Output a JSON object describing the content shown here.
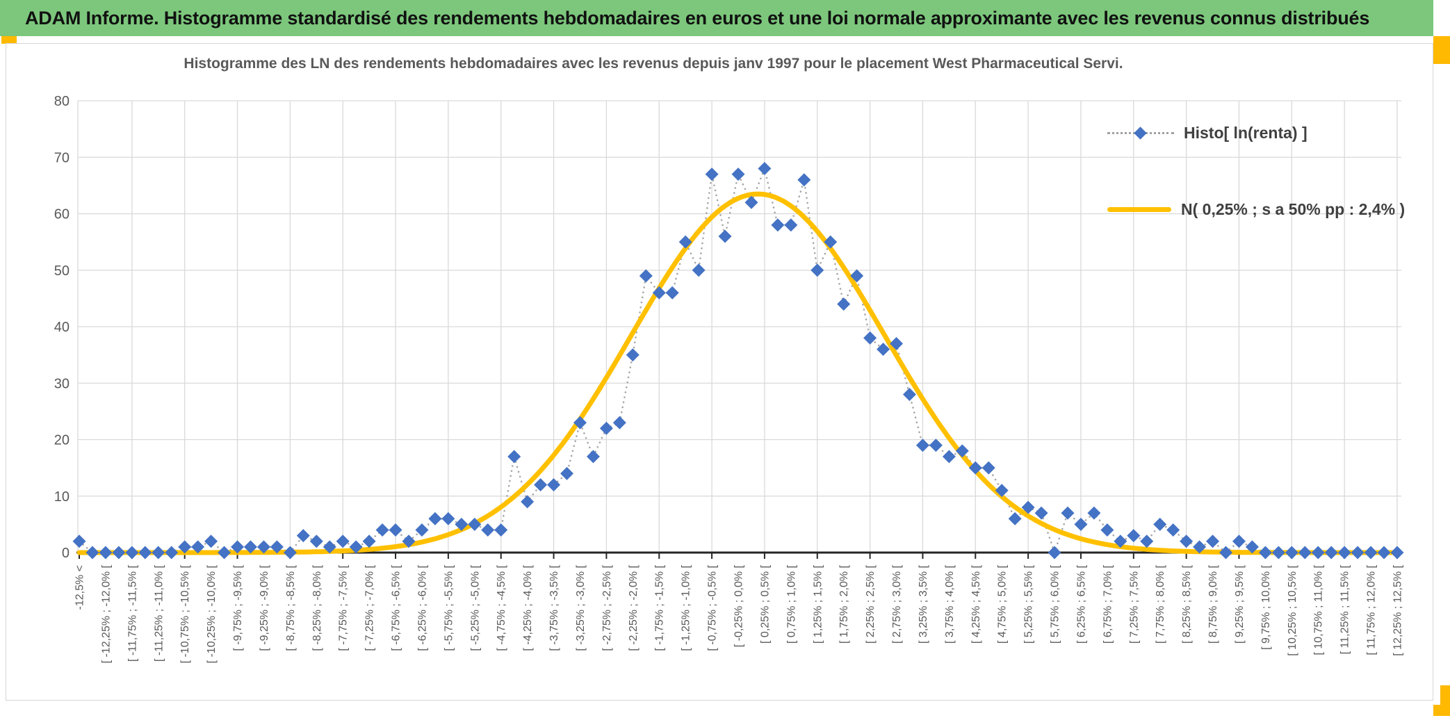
{
  "banner": {
    "title": "ADAM Informe. Histogramme standardisé des rendements hebdomadaires en euros et une loi normale approximante avec les revenus connus distribués",
    "bg_color": "#7CC77C",
    "text_color": "#111111"
  },
  "accents": {
    "color": "#FFB900"
  },
  "chart_data": {
    "type": "scatter",
    "title": "Histogramme des LN des rendements hebdomadaires avec les revenus depuis janv 1997 pour le placement West Pharmaceutical Servi.",
    "xlabel": "",
    "ylabel": "",
    "ylim": [
      0,
      80
    ],
    "yticks": [
      0,
      10,
      20,
      30,
      40,
      50,
      60,
      70,
      80
    ],
    "grid": true,
    "legend_position": "top-right",
    "label_step": 2,
    "x_bin_width_pct": 0.25,
    "x_first_bin_midpoint_pct": -12.625,
    "categories": [
      "-12,5% <",
      "[ -12,25% ; -12,0% [",
      "[ -11,75% ; -11,5% [",
      "[ -11,25% ; -11,0% [",
      "[ -10,75% ; -10,5% [",
      "[ -10,25% ; -10,0% [",
      "[ -9,75% ; -9,5% [",
      "[ -9,25% ; -9,0% [",
      "[ -8,75% ; -8,5% [",
      "[ -8,25% ; -8,0% [",
      "[ -7,75% ; -7,5% [",
      "[ -7,25% ; -7,0% [",
      "[ -6,75% ; -6,5% [",
      "[ -6,25% ; -6,0% [",
      "[ -5,75% ; -5,5% [",
      "[ -5,25% ; -5,0% [",
      "[ -4,75% ; -4,5% [",
      "[ -4,25% ; -4,0% [",
      "[ -3,75% ; -3,5% [",
      "[ -3,25% ; -3,0% [",
      "[ -2,75% ; -2,5% [",
      "[ -2,25% ; -2,0% [",
      "[ -1,75% ; -1,5% [",
      "[ -1,25% ; -1,0% [",
      "[ -0,75% ; -0,5% [",
      "[ -0,25% ; 0,0% [",
      "[ 0,25% ; 0,5% [",
      "[ 0,75% ; 1,0% [",
      "[ 1,25% ; 1,5% [",
      "[ 1,75% ; 2,0% [",
      "[ 2,25% ; 2,5% [",
      "[ 2,75% ; 3,0% [",
      "[ 3,25% ; 3,5% [",
      "[ 3,75% ; 4,0% [",
      "[ 4,25% ; 4,5% [",
      "[ 4,75% ; 5,0% [",
      "[ 5,25% ; 5,5% [",
      "[ 5,75% ; 6,0% [",
      "[ 6,25% ; 6,5% [",
      "[ 6,75% ; 7,0% [",
      "[ 7,25% ; 7,5% [",
      "[ 7,75% ; 8,0% [",
      "[ 8,25% ; 8,5% [",
      "[ 8,75% ; 9,0% [",
      "[ 9,25% ; 9,5% [",
      "[ 9,75% ; 10,0% [",
      "[ 10,25% ; 10,5% [",
      "[ 10,75% ; 11,0% [",
      "[ 11,25% ; 11,5% [",
      "[ 11,75% ; 12,0% [",
      "[ 12,25% ; 12,5% ["
    ],
    "series": [
      {
        "name": "Histo[ ln(renta) ]",
        "style": "scatter-dotted",
        "color": "#4472C4",
        "line_color": "#A6A6A6",
        "values": [
          2,
          0,
          0,
          0,
          0,
          0,
          0,
          0,
          1,
          1,
          2,
          0,
          1,
          1,
          1,
          1,
          0,
          3,
          2,
          1,
          2,
          1,
          2,
          4,
          4,
          2,
          4,
          6,
          6,
          5,
          5,
          4,
          4,
          17,
          9,
          12,
          12,
          14,
          23,
          17,
          22,
          23,
          35,
          49,
          46,
          46,
          55,
          50,
          67,
          56,
          67,
          62,
          68,
          58,
          58,
          66,
          50,
          55,
          44,
          49,
          38,
          36,
          37,
          28,
          19,
          19,
          17,
          18,
          15,
          15,
          11,
          6,
          8,
          7,
          0,
          7,
          5,
          7,
          4,
          2,
          3,
          2,
          5,
          4,
          2,
          1,
          2,
          0,
          2,
          1,
          0,
          0,
          0,
          0,
          0,
          0,
          0,
          0,
          0,
          0,
          0
        ]
      },
      {
        "name": "N( 0,25% ; s a 50% pp : 2,4% )",
        "style": "smooth-line",
        "color": "#FFC000",
        "normal_curve": {
          "mean_pct": 0.25,
          "sd_pct": 2.4,
          "peak": 63.5
        }
      }
    ],
    "axis_colors": {
      "labels": "#595959",
      "axis_line": "#262626",
      "gridline": "#D9D9D9"
    }
  }
}
